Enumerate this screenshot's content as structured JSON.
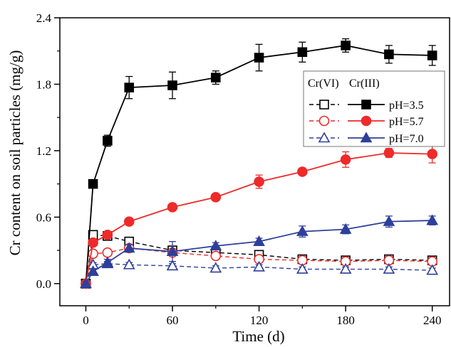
{
  "chart_data": {
    "type": "line",
    "title": "",
    "xlabel": "Time (d)",
    "ylabel": "Cr content on soil particles (mg/g)",
    "xlim": [
      -18,
      252
    ],
    "ylim": [
      -0.2,
      2.4
    ],
    "xticks": [
      0,
      60,
      120,
      180,
      240
    ],
    "xtick_labels": [
      "0",
      "60",
      "120",
      "180",
      "240"
    ],
    "yticks": [
      0.0,
      0.6,
      1.2,
      1.8,
      2.4
    ],
    "ytick_labels": [
      "0.0",
      "0.6",
      "1.2",
      "1.8",
      "2.4"
    ],
    "grid": false,
    "legend": {
      "placement": "top-right",
      "header_vi": "Cr(VI)",
      "header_iii": "Cr(III)",
      "rows": [
        "pH=3.5",
        "pH=5.7",
        "pH=7.0"
      ]
    },
    "x": [
      0,
      5,
      15,
      30,
      60,
      90,
      120,
      150,
      180,
      210,
      240
    ],
    "series": [
      {
        "name": "pH=3.5",
        "group": "Cr(III)",
        "color": "#000000",
        "marker": "square",
        "filled": true,
        "dashed": false,
        "values": [
          0.0,
          0.9,
          1.29,
          1.77,
          1.79,
          1.86,
          2.04,
          2.09,
          2.15,
          2.07,
          2.06
        ],
        "errors": [
          0.02,
          0.02,
          0.05,
          0.1,
          0.12,
          0.06,
          0.12,
          0.09,
          0.06,
          0.08,
          0.09
        ]
      },
      {
        "name": "pH=5.7",
        "group": "Cr(III)",
        "color": "#ee2a2a",
        "marker": "circle",
        "filled": true,
        "dashed": false,
        "values": [
          0.0,
          0.37,
          0.44,
          0.56,
          0.69,
          0.78,
          0.92,
          1.01,
          1.12,
          1.18,
          1.17
        ],
        "errors": [
          0.02,
          0.02,
          0.02,
          0.03,
          0.03,
          0.03,
          0.06,
          0.03,
          0.07,
          0.04,
          0.08
        ]
      },
      {
        "name": "pH=7.0",
        "group": "Cr(III)",
        "color": "#2e3f9a",
        "marker": "triangle",
        "filled": true,
        "dashed": false,
        "values": [
          0.0,
          0.11,
          0.19,
          0.32,
          0.29,
          0.34,
          0.38,
          0.47,
          0.49,
          0.56,
          0.57
        ],
        "errors": [
          0.02,
          0.02,
          0.03,
          0.03,
          0.09,
          0.03,
          0.03,
          0.05,
          0.04,
          0.05,
          0.04
        ]
      },
      {
        "name": "pH=3.5",
        "group": "Cr(VI)",
        "color": "#000000",
        "marker": "square",
        "filled": false,
        "dashed": true,
        "values": [
          0.0,
          0.44,
          0.43,
          0.38,
          0.3,
          0.28,
          0.26,
          0.22,
          0.21,
          0.22,
          0.21
        ],
        "errors": [
          0.02,
          0.02,
          0.02,
          0.02,
          0.02,
          0.02,
          0.03,
          0.02,
          0.02,
          0.02,
          0.02
        ]
      },
      {
        "name": "pH=5.7",
        "group": "Cr(VI)",
        "color": "#ee2a2a",
        "marker": "circle",
        "filled": false,
        "dashed": true,
        "values": [
          0.0,
          0.27,
          0.28,
          0.32,
          0.28,
          0.25,
          0.22,
          0.21,
          0.2,
          0.21,
          0.2
        ],
        "errors": [
          0.02,
          0.02,
          0.02,
          0.02,
          0.02,
          0.02,
          0.02,
          0.02,
          0.02,
          0.02,
          0.02
        ]
      },
      {
        "name": "pH=7.0",
        "group": "Cr(VI)",
        "color": "#2e3f9a",
        "marker": "triangle",
        "filled": false,
        "dashed": true,
        "values": [
          0.0,
          0.17,
          0.18,
          0.17,
          0.16,
          0.14,
          0.15,
          0.13,
          0.13,
          0.13,
          0.12
        ],
        "errors": [
          0.02,
          0.02,
          0.02,
          0.02,
          0.02,
          0.02,
          0.02,
          0.02,
          0.02,
          0.02,
          0.02
        ]
      }
    ]
  }
}
